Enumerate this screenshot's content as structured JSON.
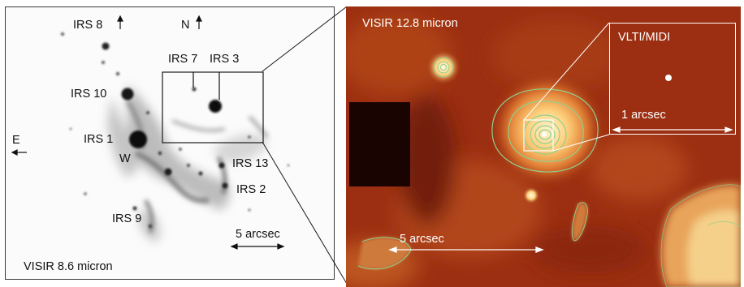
{
  "left_panel": {
    "caption": "VISIR 8.6 micron",
    "labels": {
      "irs8": "IRS 8",
      "north": "N",
      "irs7": "IRS 7",
      "irs3": "IRS 3",
      "irs10": "IRS 10",
      "east": "E",
      "irs1": "IRS 1",
      "w": "W",
      "irs13": "IRS 13",
      "irs2": "IRS 2",
      "irs9": "IRS 9",
      "scale": "5 arcsec"
    }
  },
  "right_panel": {
    "caption": "VISIR 12.8 micron",
    "scale": "5 arcsec",
    "inset": {
      "title": "VLTI/MIDI",
      "scale": "1 arcsec"
    }
  },
  "colors": {
    "right_background": "#9c2f12",
    "contour": "#8fd08f",
    "glow": "#ffd27a"
  }
}
